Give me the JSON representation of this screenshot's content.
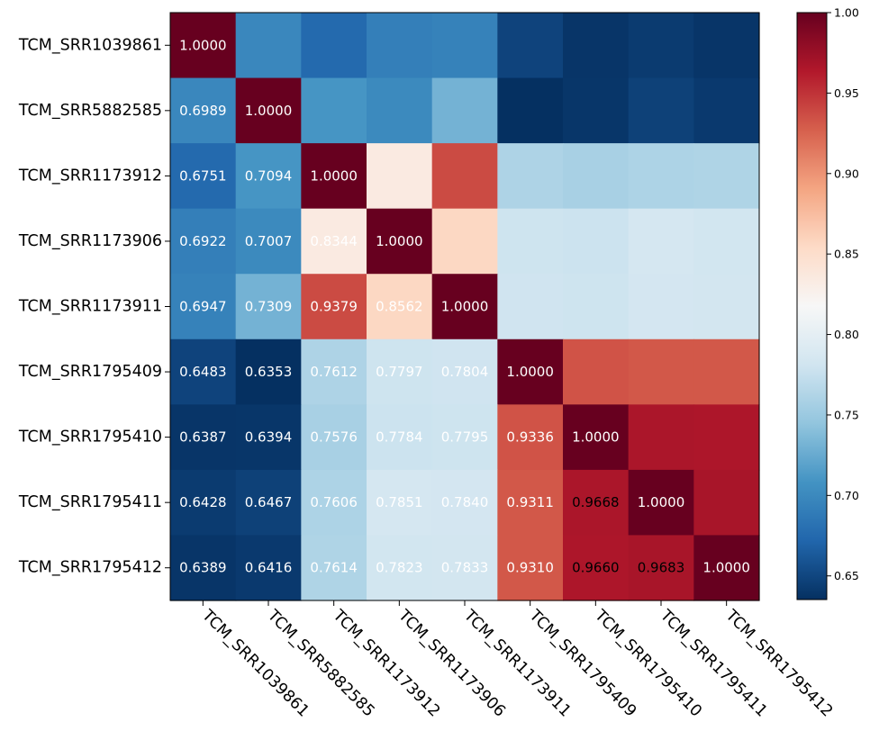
{
  "chart_data": {
    "type": "heatmap",
    "rows": [
      "TCM_SRR1039861",
      "TCM_SRR5882585",
      "TCM_SRR1173912",
      "TCM_SRR1173906",
      "TCM_SRR1173911",
      "TCM_SRR1795409",
      "TCM_SRR1795410",
      "TCM_SRR1795411",
      "TCM_SRR1795412"
    ],
    "columns": [
      "TCM_SRR1039861",
      "TCM_SRR5882585",
      "TCM_SRR1173912",
      "TCM_SRR1173906",
      "TCM_SRR1173911",
      "TCM_SRR1795409",
      "TCM_SRR1795410",
      "TCM_SRR1795411",
      "TCM_SRR1795412"
    ],
    "values": [
      [
        1.0,
        0.6989,
        0.6751,
        0.6922,
        0.6947,
        0.6483,
        0.6387,
        0.6428,
        0.6389
      ],
      [
        0.6989,
        1.0,
        0.7094,
        0.7007,
        0.7309,
        0.6353,
        0.6394,
        0.6467,
        0.6416
      ],
      [
        0.6751,
        0.7094,
        1.0,
        0.8344,
        0.9379,
        0.7612,
        0.7576,
        0.7606,
        0.7614
      ],
      [
        0.6922,
        0.7007,
        0.8344,
        1.0,
        0.8562,
        0.7797,
        0.7784,
        0.7851,
        0.7823
      ],
      [
        0.6947,
        0.7309,
        0.9379,
        0.8562,
        1.0,
        0.7804,
        0.7795,
        0.784,
        0.7833
      ],
      [
        0.6483,
        0.6353,
        0.7612,
        0.7797,
        0.7804,
        1.0,
        0.9336,
        0.9311,
        0.931
      ],
      [
        0.6387,
        0.6394,
        0.7576,
        0.7784,
        0.7795,
        0.9336,
        1.0,
        0.9668,
        0.966
      ],
      [
        0.6428,
        0.6467,
        0.7606,
        0.7851,
        0.784,
        0.9311,
        0.9668,
        1.0,
        0.9683
      ],
      [
        0.6389,
        0.6416,
        0.7614,
        0.7823,
        0.7833,
        0.931,
        0.966,
        0.9683,
        1.0
      ]
    ],
    "annotations": [
      [
        "1.0000",
        "",
        "",
        "",
        "",
        "",
        "",
        "",
        ""
      ],
      [
        "0.6989",
        "1.0000",
        "",
        "",
        "",
        "",
        "",
        "",
        ""
      ],
      [
        "0.6751",
        "0.7094",
        "1.0000",
        "",
        "",
        "",
        "",
        "",
        ""
      ],
      [
        "0.6922",
        "0.7007",
        "0.8344",
        "1.0000",
        "",
        "",
        "",
        "",
        ""
      ],
      [
        "0.6947",
        "0.7309",
        "0.9379",
        "0.8562",
        "1.0000",
        "",
        "",
        "",
        ""
      ],
      [
        "0.6483",
        "0.6353",
        "0.7612",
        "0.7797",
        "0.7804",
        "1.0000",
        "",
        "",
        ""
      ],
      [
        "0.6387",
        "0.6394",
        "0.7576",
        "0.7784",
        "0.7795",
        "0.9336",
        "1.0000",
        "",
        ""
      ],
      [
        "0.6428",
        "0.6467",
        "0.7606",
        "0.7851",
        "0.7840",
        "0.9311",
        "0.9668",
        "1.0000",
        ""
      ],
      [
        "0.6389",
        "0.6416",
        "0.7614",
        "0.7823",
        "0.7833",
        "0.9310",
        "0.9660",
        "0.9683",
        "1.0000"
      ]
    ],
    "annotation_colors": [
      [
        "#ffffff",
        "",
        "",
        "",
        "",
        "",
        "",
        "",
        ""
      ],
      [
        "#ffffff",
        "#ffffff",
        "",
        "",
        "",
        "",
        "",
        "",
        ""
      ],
      [
        "#ffffff",
        "#ffffff",
        "#ffffff",
        "",
        "",
        "",
        "",
        "",
        ""
      ],
      [
        "#ffffff",
        "#ffffff",
        "#ffffff",
        "#ffffff",
        "",
        "",
        "",
        "",
        ""
      ],
      [
        "#ffffff",
        "#ffffff",
        "#ffffff",
        "#ffffff",
        "#ffffff",
        "",
        "",
        "",
        ""
      ],
      [
        "#ffffff",
        "#ffffff",
        "#ffffff",
        "#ffffff",
        "#ffffff",
        "#ffffff",
        "",
        "",
        ""
      ],
      [
        "#ffffff",
        "#ffffff",
        "#ffffff",
        "#ffffff",
        "#ffffff",
        "#ffffff",
        "#ffffff",
        "",
        ""
      ],
      [
        "#ffffff",
        "#ffffff",
        "#ffffff",
        "#ffffff",
        "#ffffff",
        "#ffffff",
        "#000000",
        "#ffffff",
        ""
      ],
      [
        "#ffffff",
        "#ffffff",
        "#ffffff",
        "#ffffff",
        "#ffffff",
        "#ffffff",
        "#000000",
        "#000000",
        "#ffffff"
      ]
    ],
    "colorbar": {
      "vmin": 0.6353,
      "vmax": 1.0,
      "ticks": [
        0.65,
        0.7,
        0.75,
        0.8,
        0.85,
        0.9,
        0.95,
        1.0
      ],
      "tick_labels": [
        "0.65",
        "0.70",
        "0.75",
        "0.80",
        "0.85",
        "0.90",
        "0.95",
        "1.00"
      ]
    },
    "colormap": "RdBu_r",
    "colormap_stops": [
      "#053061",
      "#2166ac",
      "#4393c3",
      "#92c5de",
      "#d1e5f0",
      "#f7f7f7",
      "#fddbc7",
      "#f4a582",
      "#d6604d",
      "#b2182b",
      "#67001f"
    ],
    "grid": false,
    "x_tick_rotation_deg": 45
  }
}
